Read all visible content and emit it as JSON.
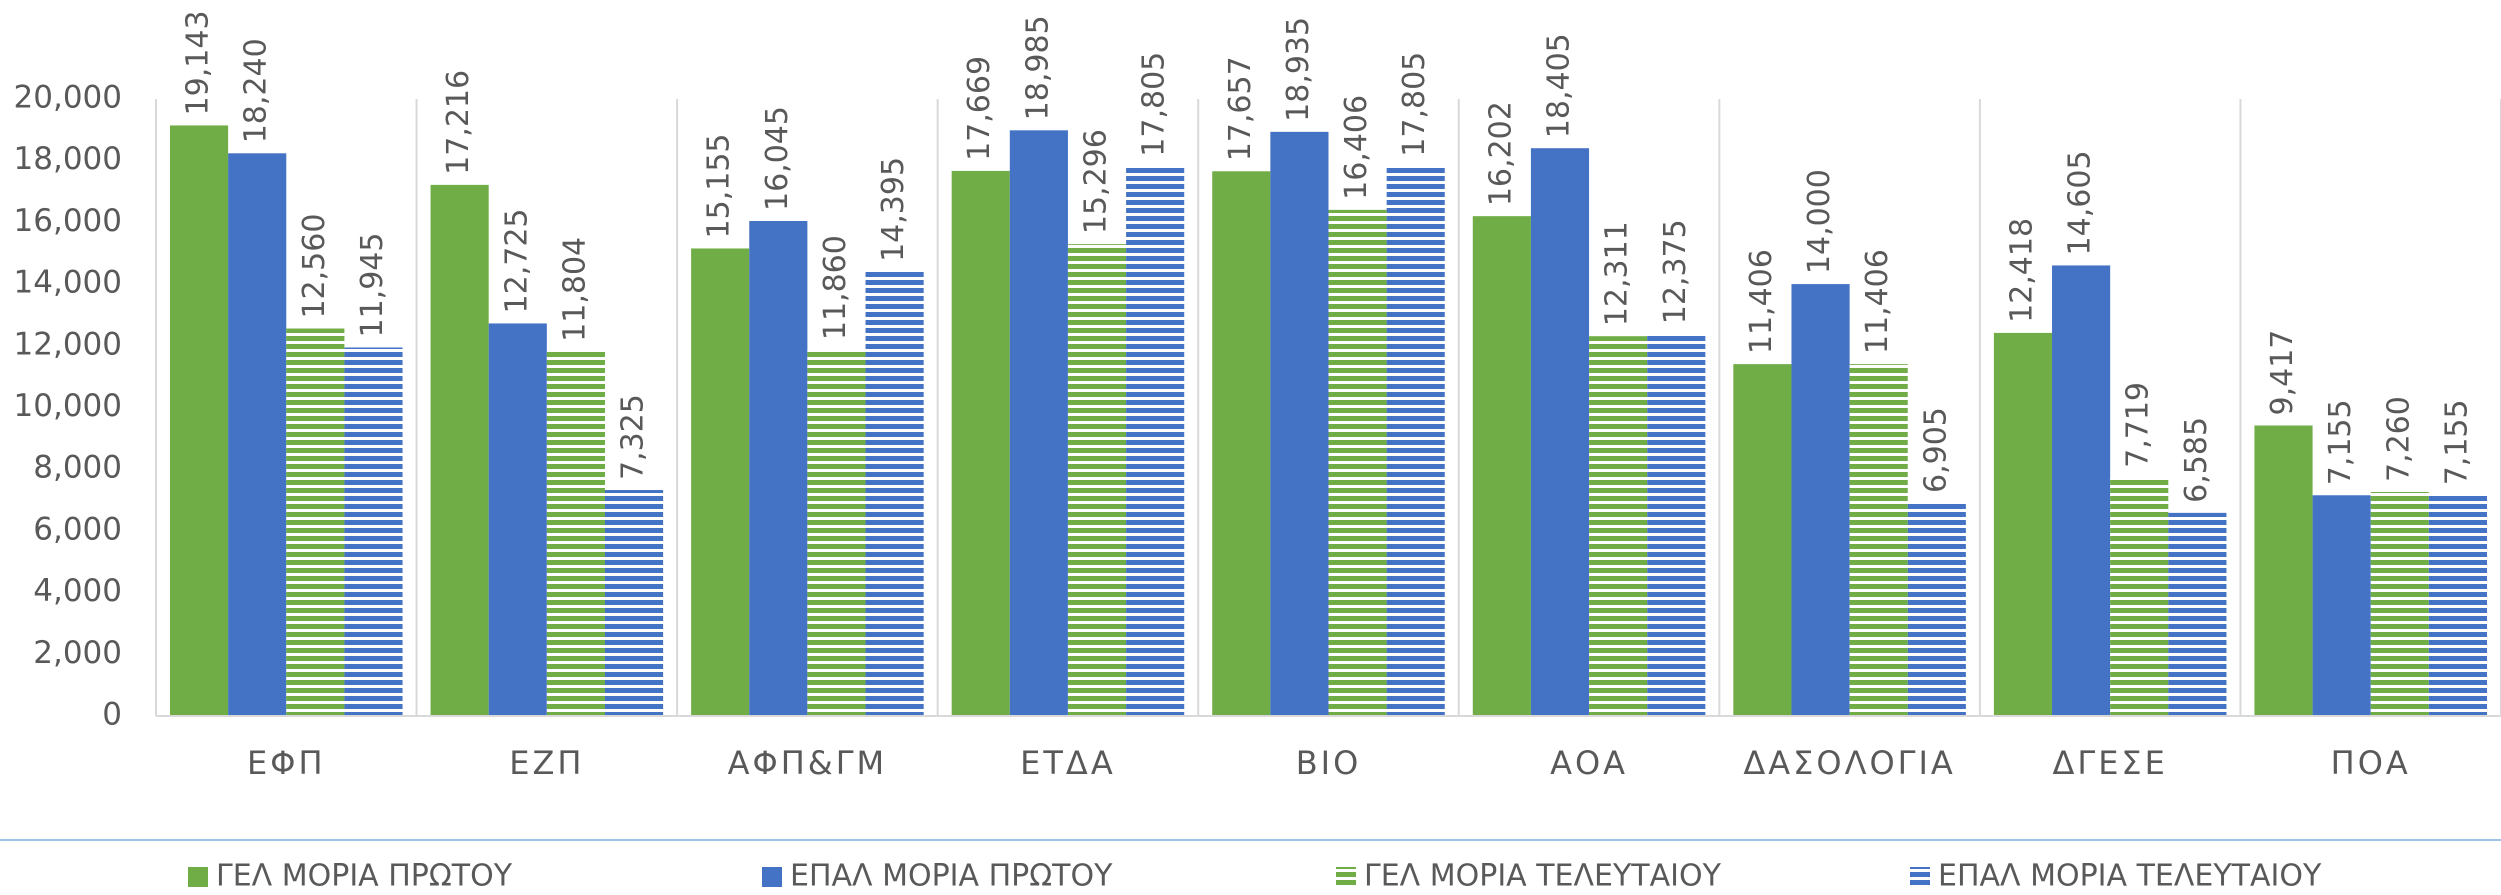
{
  "chart_data": {
    "type": "bar",
    "categories": [
      "ΕΦΠ",
      "ΕΖΠ",
      "ΑΦΠ&ΓΜ",
      "ΕΤΔΑ",
      "ΒΙΟ",
      "ΑΟΑ",
      "ΔΑΣΟΛΟΓΙΑ",
      "ΔΓΕΣΕ",
      "ΠΟΑ"
    ],
    "series": [
      {
        "name": "ΓΕΛ ΜΟΡΙΑ ΠΡΩΤΟΥ",
        "color": "#70ad47",
        "hatch": "none",
        "values": [
          19143,
          17216,
          15155,
          17669,
          17657,
          16202,
          11406,
          12418,
          9417
        ],
        "value_labels": [
          "19,143",
          "17,216",
          "15,155",
          "17,669",
          "17,657",
          "16,202",
          "11,406",
          "12,418",
          "9,417"
        ]
      },
      {
        "name": "ΕΠΑΛ ΜΟΡΙΑ ΠΡΩΤΟΥ",
        "color": "#4472c4",
        "hatch": "none",
        "values": [
          18240,
          12725,
          16045,
          18985,
          18935,
          18405,
          14000,
          14605,
          7155
        ],
        "value_labels": [
          "18,240",
          "12,725",
          "16,045",
          "18,985",
          "18,935",
          "18,405",
          "14,000",
          "14,605",
          "7,155"
        ]
      },
      {
        "name": "ΓΕΛ ΜΟΡΙΑ ΤΕΛΕΥΤΑΙΟΥ",
        "color": "#70ad47",
        "hatch": "horizontal",
        "values": [
          12560,
          11804,
          11860,
          15296,
          16406,
          12311,
          11406,
          7719,
          7260
        ],
        "value_labels": [
          "12,560",
          "11,804",
          "11,860",
          "15,296",
          "16,406",
          "12,311",
          "11,406",
          "7,719",
          "7,260"
        ]
      },
      {
        "name": "ΕΠΑΛ ΜΟΡΙΑ ΤΕΛΕΥΤΑΙΟΥ",
        "color": "#4472c4",
        "hatch": "horizontal",
        "values": [
          11945,
          7325,
          14395,
          17805,
          17805,
          12375,
          6905,
          6585,
          7155
        ],
        "value_labels": [
          "11,945",
          "7,325",
          "14,395",
          "17,805",
          "17,805",
          "12,375",
          "6,905",
          "6,585",
          "7,155"
        ]
      }
    ],
    "ylim": [
      0,
      20000
    ],
    "yticks": [
      0,
      {
        "value": 2000,
        "label": "2,000"
      },
      {
        "value": 4000,
        "label": "4,000"
      },
      {
        "value": 6000,
        "label": "6,000"
      },
      {
        "value": 8000,
        "label": "8,000"
      },
      {
        "value": 10000,
        "label": "10,000"
      },
      {
        "value": 12000,
        "label": "12,000"
      },
      {
        "value": 14000,
        "label": "14,000"
      },
      {
        "value": 16000,
        "label": "16,000"
      },
      {
        "value": 18000,
        "label": "18,000"
      },
      {
        "value": 20000,
        "label": "20,000"
      }
    ],
    "legend": "bottom"
  }
}
